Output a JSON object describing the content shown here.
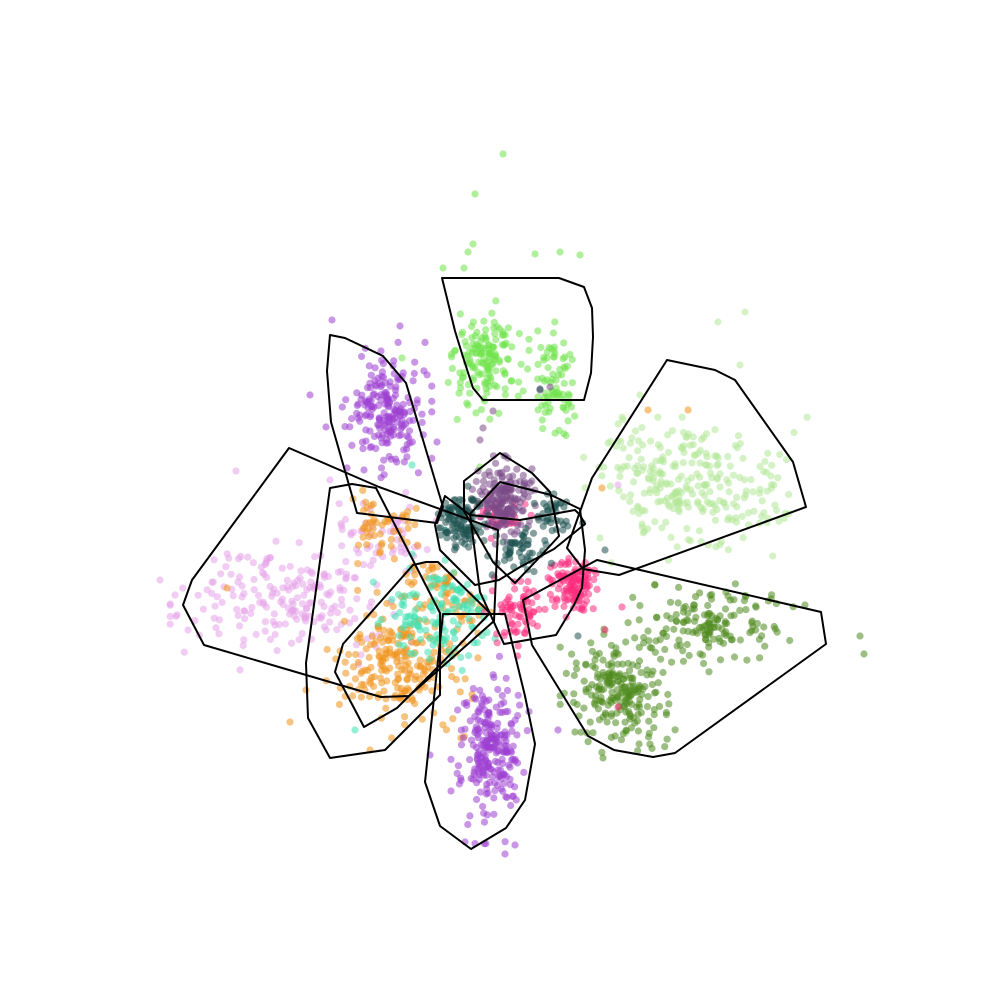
{
  "chart_data": {
    "type": "scatter",
    "title": "",
    "xlabel": "",
    "ylabel": "",
    "axes_visible": false,
    "grid": false,
    "legend": "none",
    "xlim": [
      0,
      100
    ],
    "ylim": [
      0,
      100
    ],
    "hull_color": "#000000",
    "clusters": [
      {
        "id": "lime",
        "color": "#6fe34a",
        "hull": [
          [
            44.2,
            72.2
          ],
          [
            45.5,
            66.9
          ],
          [
            46.3,
            64.3
          ],
          [
            47.3,
            61.2
          ],
          [
            48.3,
            60.0
          ],
          [
            58.4,
            60.0
          ],
          [
            59.1,
            62.7
          ],
          [
            59.3,
            66.3
          ],
          [
            59.2,
            69.2
          ],
          [
            58.4,
            71.3
          ],
          [
            55.9,
            72.2
          ]
        ],
        "blobs": [
          {
            "cx": 48.6,
            "cy": 63.5,
            "sx": 1.6,
            "sy": 2.6,
            "n": 150
          },
          {
            "cx": 55.5,
            "cy": 61.3,
            "sx": 1.0,
            "sy": 2.5,
            "n": 80
          }
        ],
        "outliers": [
          [
            50.3,
            84.6
          ],
          [
            47.5,
            80.6
          ],
          [
            47.3,
            75.6
          ],
          [
            46.8,
            74.8
          ],
          [
            56.0,
            74.8
          ],
          [
            53.5,
            74.6
          ],
          [
            44.3,
            73.2
          ],
          [
            46.4,
            73.2
          ],
          [
            58.0,
            74.5
          ],
          [
            40.2,
            64.2
          ],
          [
            48.0,
            53.3
          ]
        ]
      },
      {
        "id": "lightgreen",
        "color": "#b3e897",
        "hull": [
          [
            66.7,
            64.0
          ],
          [
            71.5,
            63.0
          ],
          [
            73.5,
            62.0
          ],
          [
            79.3,
            53.8
          ],
          [
            80.6,
            49.3
          ],
          [
            61.9,
            42.5
          ],
          [
            58.3,
            43.1
          ],
          [
            56.7,
            45.2
          ],
          [
            59.2,
            52.2
          ]
        ],
        "blobs": [
          {
            "cx": 69.8,
            "cy": 51.0,
            "sx": 4.4,
            "sy": 2.8,
            "n": 230
          },
          {
            "cx": 64.5,
            "cy": 54.5,
            "sx": 2.8,
            "sy": 2.2,
            "n": 40
          }
        ],
        "outliers": [
          [
            74.5,
            68.8
          ],
          [
            71.8,
            67.8
          ],
          [
            74.0,
            63.5
          ],
          [
            64.0,
            60.5
          ],
          [
            73.2,
            48.0
          ],
          [
            60.0,
            46.2
          ],
          [
            62.6,
            26.7
          ]
        ]
      },
      {
        "id": "purple-top",
        "color": "#9c3fd1",
        "hull": [
          [
            33.0,
            66.5
          ],
          [
            34.5,
            66.2
          ],
          [
            38.3,
            64.4
          ],
          [
            40.6,
            61.7
          ],
          [
            44.3,
            49.3
          ],
          [
            43.7,
            47.7
          ],
          [
            35.7,
            48.7
          ],
          [
            33.1,
            57.8
          ],
          [
            32.7,
            62.9
          ]
        ],
        "blobs": [
          {
            "cx": 38.5,
            "cy": 59.0,
            "sx": 1.8,
            "sy": 2.6,
            "n": 200
          }
        ],
        "outliers": [
          [
            33.2,
            68.0
          ],
          [
            40.0,
            67.4
          ],
          [
            31.0,
            60.5
          ],
          [
            32.6,
            57.3
          ],
          [
            34.7,
            53.2
          ],
          [
            36.4,
            53.0
          ],
          [
            43.7,
            55.8
          ]
        ]
      },
      {
        "id": "pink-lavender",
        "color": "#e6a3ea",
        "hull": [
          [
            28.9,
            55.2
          ],
          [
            37.9,
            51.3
          ],
          [
            49.8,
            47.0
          ],
          [
            49.4,
            37.9
          ],
          [
            40.9,
            30.4
          ],
          [
            38.1,
            30.3
          ],
          [
            20.4,
            35.5
          ],
          [
            18.3,
            39.5
          ],
          [
            19.2,
            42.0
          ]
        ],
        "blobs": [
          {
            "cx": 29.5,
            "cy": 40.0,
            "sx": 4.8,
            "sy": 2.6,
            "n": 200
          },
          {
            "cx": 38.5,
            "cy": 47.0,
            "sx": 2.6,
            "sy": 1.8,
            "n": 50
          }
        ],
        "outliers": [
          [
            23.6,
            52.9
          ],
          [
            33.0,
            52.0
          ],
          [
            16.0,
            42.0
          ],
          [
            17.5,
            40.5
          ],
          [
            24.0,
            33.0
          ],
          [
            27.5,
            37.5
          ],
          [
            61.8,
            51.5
          ]
        ]
      },
      {
        "id": "orange",
        "color": "#f0921a",
        "hull": [
          [
            33.0,
            51.2
          ],
          [
            35.2,
            51.6
          ],
          [
            37.6,
            51.2
          ],
          [
            44.0,
            38.7
          ],
          [
            44.0,
            30.5
          ],
          [
            38.5,
            25.0
          ],
          [
            33.0,
            24.2
          ],
          [
            30.8,
            28.2
          ],
          [
            30.6,
            33.7
          ]
        ],
        "blobs": [
          {
            "cx": 40.0,
            "cy": 34.0,
            "sx": 3.0,
            "sy": 3.0,
            "n": 220
          },
          {
            "cx": 38.0,
            "cy": 47.5,
            "sx": 1.8,
            "sy": 1.6,
            "n": 50
          },
          {
            "cx": 43.0,
            "cy": 42.0,
            "sx": 1.5,
            "sy": 1.3,
            "n": 40
          },
          {
            "cx": 47.0,
            "cy": 39.2,
            "sx": 1.0,
            "sy": 0.8,
            "n": 20
          }
        ],
        "outliers": [
          [
            29.0,
            27.8
          ],
          [
            30.6,
            31.0
          ],
          [
            22.7,
            41.2
          ],
          [
            60.2,
            51.2
          ],
          [
            64.8,
            59.0
          ],
          [
            68.8,
            59.0
          ],
          [
            37.0,
            25.0
          ]
        ]
      },
      {
        "id": "teal",
        "color": "#40e0b0",
        "hull": [
          [
            41.3,
            43.5
          ],
          [
            42.6,
            43.8
          ],
          [
            43.8,
            43.8
          ],
          [
            49.0,
            38.7
          ],
          [
            43.5,
            33.0
          ],
          [
            39.7,
            29.2
          ],
          [
            36.4,
            27.3
          ],
          [
            33.5,
            32.8
          ],
          [
            34.3,
            35.6
          ]
        ],
        "blobs": [
          {
            "cx": 43.0,
            "cy": 38.5,
            "sx": 2.5,
            "sy": 2.6,
            "n": 110
          },
          {
            "cx": 46.5,
            "cy": 39.5,
            "sx": 1.4,
            "sy": 1.6,
            "n": 30
          }
        ],
        "outliers": [
          [
            41.2,
            53.5
          ],
          [
            44.5,
            47.0
          ],
          [
            35.5,
            27.0
          ]
        ]
      },
      {
        "id": "purple-bottom",
        "color": "#9c3fd1",
        "hull": [
          [
            44.3,
            38.6
          ],
          [
            50.5,
            38.6
          ],
          [
            52.5,
            30.4
          ],
          [
            53.5,
            25.6
          ],
          [
            52.5,
            20.0
          ],
          [
            50.6,
            17.2
          ],
          [
            47.1,
            15.1
          ],
          [
            44.0,
            17.4
          ],
          [
            42.5,
            21.8
          ]
        ],
        "blobs": [
          {
            "cx": 49.0,
            "cy": 25.0,
            "sx": 1.5,
            "sy": 3.6,
            "n": 240
          }
        ],
        "outliers": [
          [
            43.0,
            24.5
          ],
          [
            50.5,
            14.6
          ],
          [
            51.5,
            15.5
          ],
          [
            46.5,
            15.8
          ],
          [
            55.8,
            27.0
          ]
        ]
      },
      {
        "id": "darkgreen",
        "color": "#4e8a1e",
        "hull": [
          [
            52.3,
            40.0
          ],
          [
            59.7,
            44.0
          ],
          [
            82.1,
            38.8
          ],
          [
            82.6,
            35.6
          ],
          [
            67.5,
            24.7
          ],
          [
            65.3,
            24.3
          ],
          [
            61.4,
            25.0
          ],
          [
            58.8,
            26.4
          ],
          [
            53.2,
            35.5
          ]
        ],
        "blobs": [
          {
            "cx": 62.0,
            "cy": 31.0,
            "sx": 2.3,
            "sy": 2.4,
            "n": 220
          },
          {
            "cx": 71.0,
            "cy": 37.5,
            "sx": 3.2,
            "sy": 1.8,
            "n": 150
          }
        ],
        "outliers": [
          [
            86.0,
            36.4
          ],
          [
            86.4,
            34.6
          ],
          [
            80.5,
            39.5
          ],
          [
            60.3,
            24.2
          ],
          [
            57.5,
            26.8
          ],
          [
            65.5,
            41.5
          ],
          [
            57.0,
            41.0
          ]
        ]
      },
      {
        "id": "magenta",
        "color": "#ff2b7e",
        "hull": [
          [
            47.0,
            48.6
          ],
          [
            50.0,
            51.8
          ],
          [
            55.1,
            50.5
          ],
          [
            58.0,
            49.1
          ],
          [
            58.5,
            45.0
          ],
          [
            58.2,
            41.2
          ],
          [
            57.4,
            39.5
          ],
          [
            55.6,
            36.5
          ],
          [
            50.4,
            35.6
          ],
          [
            48.0,
            40.8
          ]
        ],
        "blobs": [
          {
            "cx": 57.5,
            "cy": 41.6,
            "sx": 1.1,
            "sy": 1.3,
            "n": 120
          },
          {
            "cx": 52.0,
            "cy": 38.5,
            "sx": 1.4,
            "sy": 1.6,
            "n": 70
          },
          {
            "cx": 50.0,
            "cy": 48.5,
            "sx": 1.2,
            "sy": 1.0,
            "n": 40
          }
        ],
        "outliers": [
          [
            62.2,
            39.3
          ],
          [
            61.8,
            29.3
          ],
          [
            60.5,
            37.0
          ]
        ]
      },
      {
        "id": "plum",
        "color": "#7a4a86",
        "hull": [
          [
            46.4,
            51.9
          ],
          [
            50.0,
            54.7
          ],
          [
            53.2,
            52.7
          ],
          [
            55.0,
            50.8
          ],
          [
            55.9,
            46.4
          ],
          [
            53.7,
            44.0
          ],
          [
            51.5,
            41.7
          ],
          [
            49.3,
            43.8
          ],
          [
            46.4,
            48.9
          ]
        ],
        "blobs": [
          {
            "cx": 50.5,
            "cy": 50.0,
            "sx": 1.5,
            "sy": 1.7,
            "n": 170
          }
        ],
        "outliers": [
          [
            48.3,
            57.2
          ],
          [
            49.3,
            58.9
          ],
          [
            54.0,
            61.0
          ],
          [
            55.0,
            61.3
          ],
          [
            48.0,
            56.0
          ]
        ]
      },
      {
        "id": "darkteal",
        "color": "#1e5251",
        "hull": [
          [
            44.5,
            50.4
          ],
          [
            47.0,
            48.5
          ],
          [
            52.0,
            48.0
          ],
          [
            57.5,
            49.0
          ],
          [
            58.0,
            48.5
          ],
          [
            58.5,
            47.6
          ],
          [
            55.4,
            45.1
          ],
          [
            52.0,
            43.3
          ],
          [
            49.9,
            42.0
          ],
          [
            47.5,
            41.5
          ],
          [
            44.0,
            45.0
          ],
          [
            43.5,
            47.5
          ]
        ],
        "blobs": [
          {
            "cx": 46.0,
            "cy": 48.0,
            "sx": 1.1,
            "sy": 1.3,
            "n": 110
          },
          {
            "cx": 51.5,
            "cy": 45.0,
            "sx": 1.4,
            "sy": 1.0,
            "n": 50
          },
          {
            "cx": 55.0,
            "cy": 48.0,
            "sx": 1.3,
            "sy": 1.0,
            "n": 40
          }
        ],
        "outliers": [
          [
            54.0,
            61.1
          ],
          [
            60.5,
            45.0
          ],
          [
            57.8,
            36.4
          ]
        ]
      }
    ]
  }
}
